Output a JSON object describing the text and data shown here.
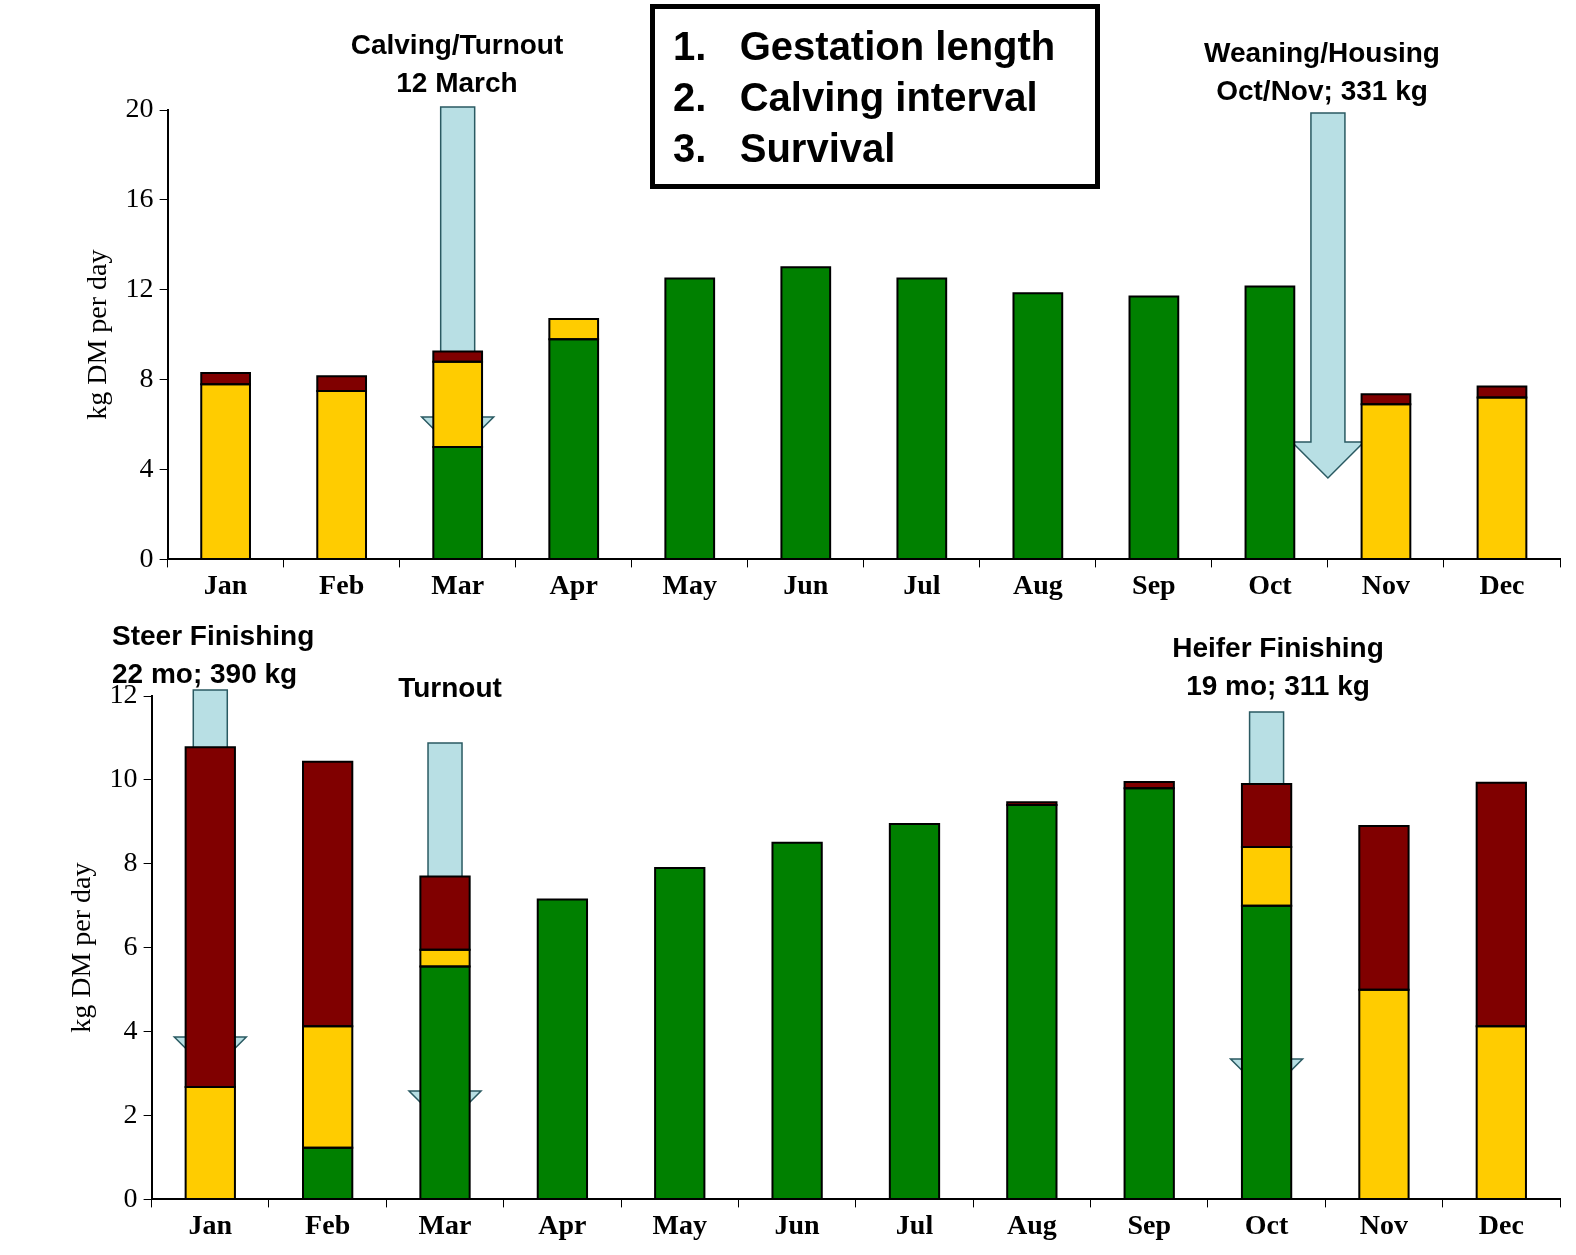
{
  "chart_data": [
    {
      "type": "bar",
      "stacked": true,
      "ylabel": "kg DM per day",
      "categories": [
        "Jan",
        "Feb",
        "Mar",
        "Apr",
        "May",
        "Jun",
        "Jul",
        "Aug",
        "Sep",
        "Oct",
        "Nov",
        "Dec"
      ],
      "ylim": [
        0,
        20
      ],
      "yticks": [
        0,
        4,
        8,
        12,
        16,
        20
      ],
      "grid": false,
      "legend": false,
      "series": [
        {
          "color": "#008000",
          "values": [
            0,
            0,
            5,
            9.8,
            12.5,
            13,
            12.5,
            11.85,
            11.7,
            12.15,
            0,
            0
          ]
        },
        {
          "color": "#ffcc00",
          "values": [
            7.8,
            7.5,
            3.8,
            0.9,
            0,
            0,
            0,
            0,
            0,
            0,
            6.9,
            7.2
          ]
        },
        {
          "color": "#800000",
          "values": [
            0.5,
            0.65,
            0.45,
            0,
            0,
            0,
            0,
            0,
            0,
            0,
            0.45,
            0.5
          ]
        }
      ],
      "annotations": [
        "1.   Gestation length\n2.   Calving interval\n3.   Survival",
        "Calving/Turnout\n12 March",
        "Weaning/Housing\nOct/Nov; 331 kg"
      ]
    },
    {
      "type": "bar",
      "stacked": true,
      "ylabel": "kg DM per day",
      "categories": [
        "Jan",
        "Feb",
        "Mar",
        "Apr",
        "May",
        "Jun",
        "Jul",
        "Aug",
        "Sep",
        "Oct",
        "Nov",
        "Dec"
      ],
      "ylim": [
        0,
        12
      ],
      "yticks": [
        0,
        2,
        4,
        6,
        8,
        10,
        12
      ],
      "grid": false,
      "legend": false,
      "series": [
        {
          "color": "#008000",
          "values": [
            0,
            1.23,
            5.55,
            7.15,
            7.9,
            8.5,
            8.95,
            9.4,
            9.8,
            7,
            0,
            0
          ]
        },
        {
          "color": "#ffcc00",
          "values": [
            2.68,
            2.9,
            0.4,
            0,
            0,
            0,
            0,
            0,
            0,
            1.4,
            5,
            4.13
          ]
        },
        {
          "color": "#800000",
          "values": [
            8.1,
            6.3,
            1.75,
            0,
            0,
            0,
            0,
            0.07,
            0.15,
            1.5,
            3.9,
            5.8
          ]
        }
      ],
      "annotations": [
        "Steer Finishing\n22 mo; 390 kg",
        "Turnout",
        "Heifer Finishing\n19 mo; 311 kg"
      ]
    }
  ]
}
